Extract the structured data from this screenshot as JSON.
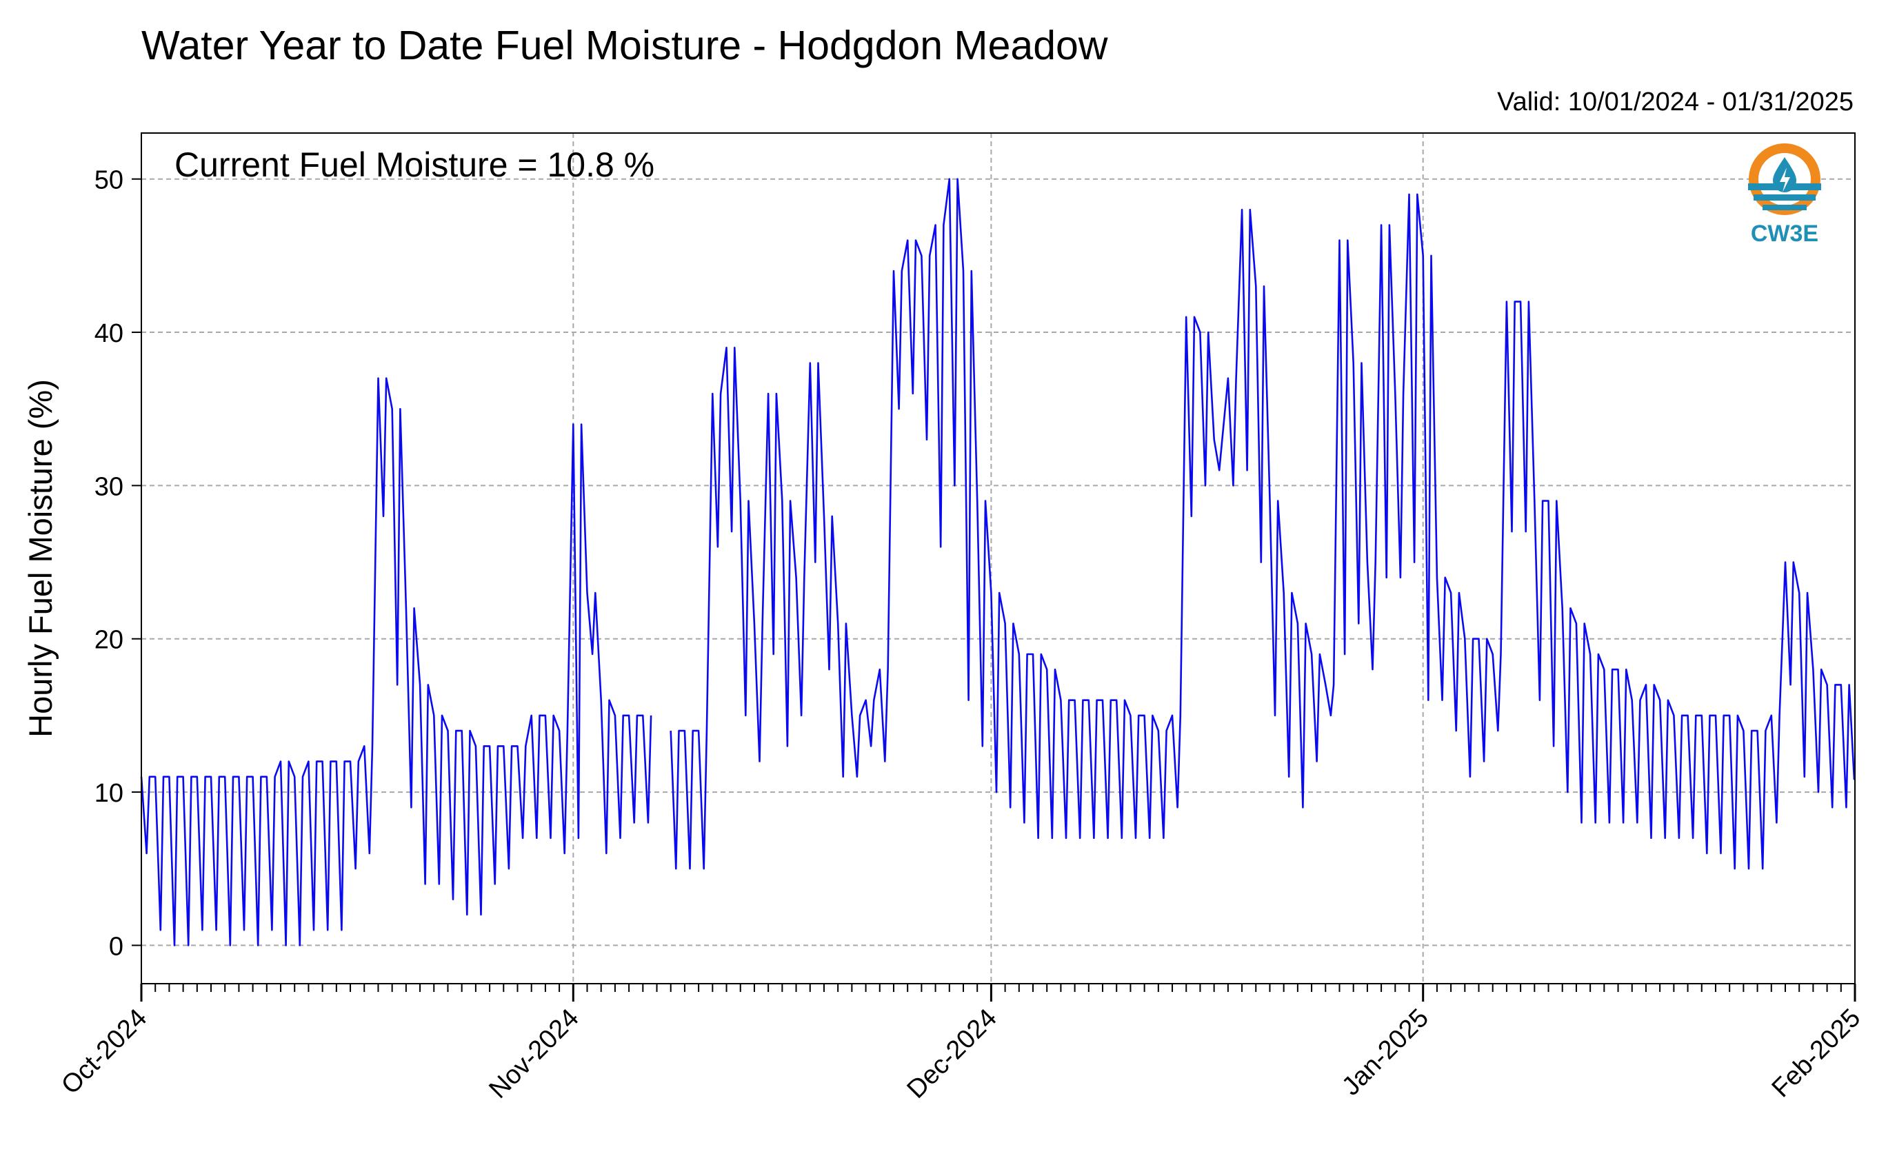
{
  "chart_data": {
    "type": "line",
    "title": "Water Year to Date Fuel Moisture - Hodgdon Meadow",
    "valid_label": "Valid: 10/01/2024 - 01/31/2025",
    "annotation": "Current Fuel Moisture = 10.8 %",
    "ylabel": "Hourly Fuel Moisture (%)",
    "xlabel": "",
    "x_start": "2024-10-01",
    "x_end": "2025-02-01",
    "ylim": [
      -2.5,
      53
    ],
    "y_ticks": [
      0,
      10,
      20,
      30,
      40,
      50
    ],
    "x_ticks": [
      {
        "date": "2024-10-01",
        "label": "Oct-2024"
      },
      {
        "date": "2024-11-01",
        "label": "Nov-2024"
      },
      {
        "date": "2024-12-01",
        "label": "Dec-2024"
      },
      {
        "date": "2025-01-01",
        "label": "Jan-2025"
      },
      {
        "date": "2025-02-01",
        "label": "Feb-2025"
      }
    ],
    "grid": true,
    "line_color": "#0a0af0",
    "series": [
      {
        "name": "",
        "x": [
          "2024-10-01",
          "2024-10-02",
          "2024-10-03",
          "2024-10-04",
          "2024-10-05",
          "2024-10-06",
          "2024-10-07",
          "2024-10-08",
          "2024-10-09",
          "2024-10-10",
          "2024-10-11",
          "2024-10-12",
          "2024-10-13",
          "2024-10-14",
          "2024-10-15",
          "2024-10-16",
          "2024-10-17",
          "2024-10-18",
          "2024-10-19",
          "2024-10-20",
          "2024-10-21",
          "2024-10-22",
          "2024-10-23",
          "2024-10-24",
          "2024-10-25",
          "2024-10-26",
          "2024-10-27",
          "2024-10-28",
          "2024-10-29",
          "2024-10-30",
          "2024-10-31",
          "2024-11-01",
          "2024-11-02",
          "2024-11-03",
          "2024-11-04",
          "2024-11-05",
          "2024-11-06",
          "2024-11-07",
          "2024-11-08",
          "2024-11-09",
          "2024-11-10",
          "2024-11-11",
          "2024-11-12",
          "2024-11-13",
          "2024-11-14",
          "2024-11-15",
          "2024-11-16",
          "2024-11-17",
          "2024-11-18",
          "2024-11-19",
          "2024-11-20",
          "2024-11-21",
          "2024-11-22",
          "2024-11-23",
          "2024-11-24",
          "2024-11-25",
          "2024-11-26",
          "2024-11-27",
          "2024-11-28",
          "2024-11-29",
          "2024-11-30",
          "2024-12-01",
          "2024-12-02",
          "2024-12-03",
          "2024-12-04",
          "2024-12-05",
          "2024-12-06",
          "2024-12-07",
          "2024-12-08",
          "2024-12-09",
          "2024-12-10",
          "2024-12-11",
          "2024-12-12",
          "2024-12-13",
          "2024-12-14",
          "2024-12-15",
          "2024-12-16",
          "2024-12-17",
          "2024-12-18",
          "2024-12-19",
          "2024-12-20",
          "2024-12-21",
          "2024-12-22",
          "2024-12-23",
          "2024-12-24",
          "2024-12-25",
          "2024-12-26",
          "2024-12-27",
          "2024-12-28",
          "2024-12-29",
          "2024-12-30",
          "2024-12-31",
          "2025-01-01",
          "2025-01-02",
          "2025-01-03",
          "2025-01-04",
          "2025-01-05",
          "2025-01-06",
          "2025-01-07",
          "2025-01-08",
          "2025-01-09",
          "2025-01-10",
          "2025-01-11",
          "2025-01-12",
          "2025-01-13",
          "2025-01-14",
          "2025-01-15",
          "2025-01-16",
          "2025-01-17",
          "2025-01-18",
          "2025-01-19",
          "2025-01-20",
          "2025-01-21",
          "2025-01-22",
          "2025-01-23",
          "2025-01-24",
          "2025-01-25",
          "2025-01-26",
          "2025-01-27",
          "2025-01-28",
          "2025-01-29",
          "2025-01-30",
          "2025-01-31"
        ],
        "daily_max": [
          11,
          11,
          11,
          11,
          11,
          11,
          11,
          11,
          11,
          11,
          12,
          11,
          12,
          12,
          12,
          12,
          13,
          37,
          35,
          22,
          17,
          15,
          14,
          14,
          13,
          13,
          13,
          13,
          15,
          15,
          14,
          34,
          23,
          16,
          15,
          15,
          15,
          null,
          14,
          14,
          14,
          36,
          39,
          29,
          21,
          36,
          29,
          24,
          38,
          28,
          21,
          15,
          16,
          18,
          44,
          46,
          45,
          47,
          50,
          44,
          29,
          23,
          21,
          19,
          19,
          18,
          16,
          16,
          16,
          16,
          16,
          15,
          15,
          14,
          15,
          41,
          40,
          33,
          37,
          48,
          43,
          29,
          23,
          21,
          19,
          17,
          46,
          38,
          25,
          47,
          36,
          49,
          45,
          24,
          23,
          20,
          20,
          19,
          42,
          42,
          29,
          29,
          22,
          21,
          19,
          18,
          18,
          16,
          17,
          16,
          15,
          15,
          15,
          15,
          15,
          14,
          14,
          15,
          25,
          23,
          18,
          17,
          17
        ],
        "daily_min": [
          6,
          1,
          0,
          0,
          1,
          1,
          0,
          1,
          0,
          1,
          0,
          0,
          1,
          1,
          1,
          5,
          6,
          28,
          17,
          9,
          4,
          4,
          3,
          2,
          2,
          4,
          5,
          7,
          7,
          7,
          6,
          7,
          19,
          6,
          7,
          8,
          8,
          null,
          5,
          5,
          5,
          26,
          27,
          15,
          12,
          19,
          13,
          15,
          25,
          18,
          11,
          11,
          13,
          12,
          35,
          36,
          33,
          26,
          30,
          16,
          13,
          10,
          9,
          8,
          7,
          7,
          7,
          7,
          7,
          7,
          7,
          7,
          7,
          7,
          9,
          28,
          30,
          31,
          30,
          31,
          25,
          15,
          11,
          9,
          12,
          15,
          19,
          21,
          18,
          24,
          24,
          25,
          16,
          16,
          14,
          11,
          12,
          14,
          27,
          27,
          16,
          13,
          10,
          8,
          8,
          8,
          8,
          8,
          7,
          7,
          7,
          7,
          6,
          6,
          5,
          5,
          5,
          8,
          17,
          11,
          10,
          9,
          9
        ],
        "current": 10.8
      }
    ]
  },
  "logo": {
    "text": "CW3E",
    "icon_color_outer": "#f08a1d",
    "icon_color_inner": "#1f8fb6",
    "text_color": "#1f8fb6"
  }
}
